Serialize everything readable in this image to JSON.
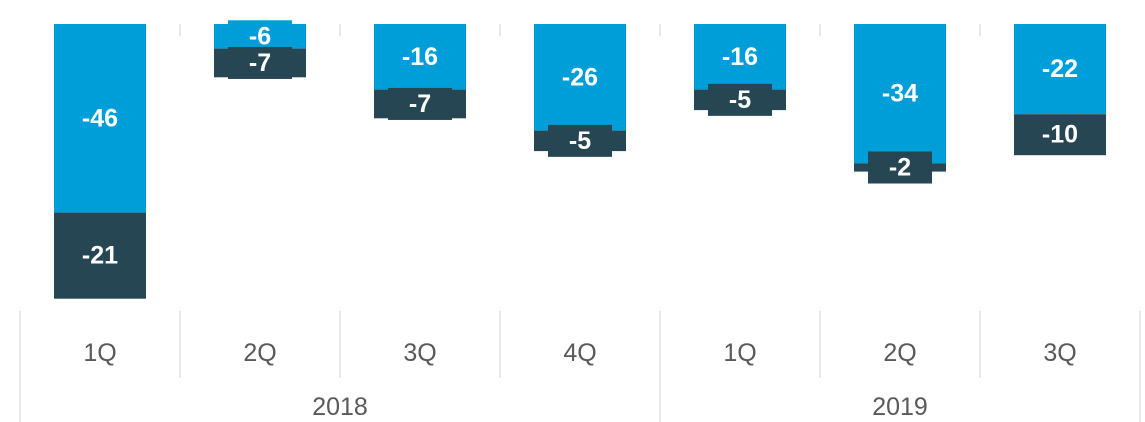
{
  "chart_data": {
    "type": "bar",
    "stacked": true,
    "categories": [
      "1Q",
      "2Q",
      "3Q",
      "4Q",
      "1Q",
      "2Q",
      "3Q"
    ],
    "category_groups": [
      {
        "name": "2018",
        "count": 4
      },
      {
        "name": "2019",
        "count": 3
      }
    ],
    "series": [
      {
        "color": "#009ed8",
        "values": [
          -46,
          -6,
          -16,
          -26,
          -16,
          -34,
          -22
        ]
      },
      {
        "color": "#264654",
        "values": [
          -21,
          -7,
          -7,
          -5,
          -5,
          -2,
          -10
        ]
      }
    ],
    "ylim": [
      -70,
      0
    ]
  }
}
